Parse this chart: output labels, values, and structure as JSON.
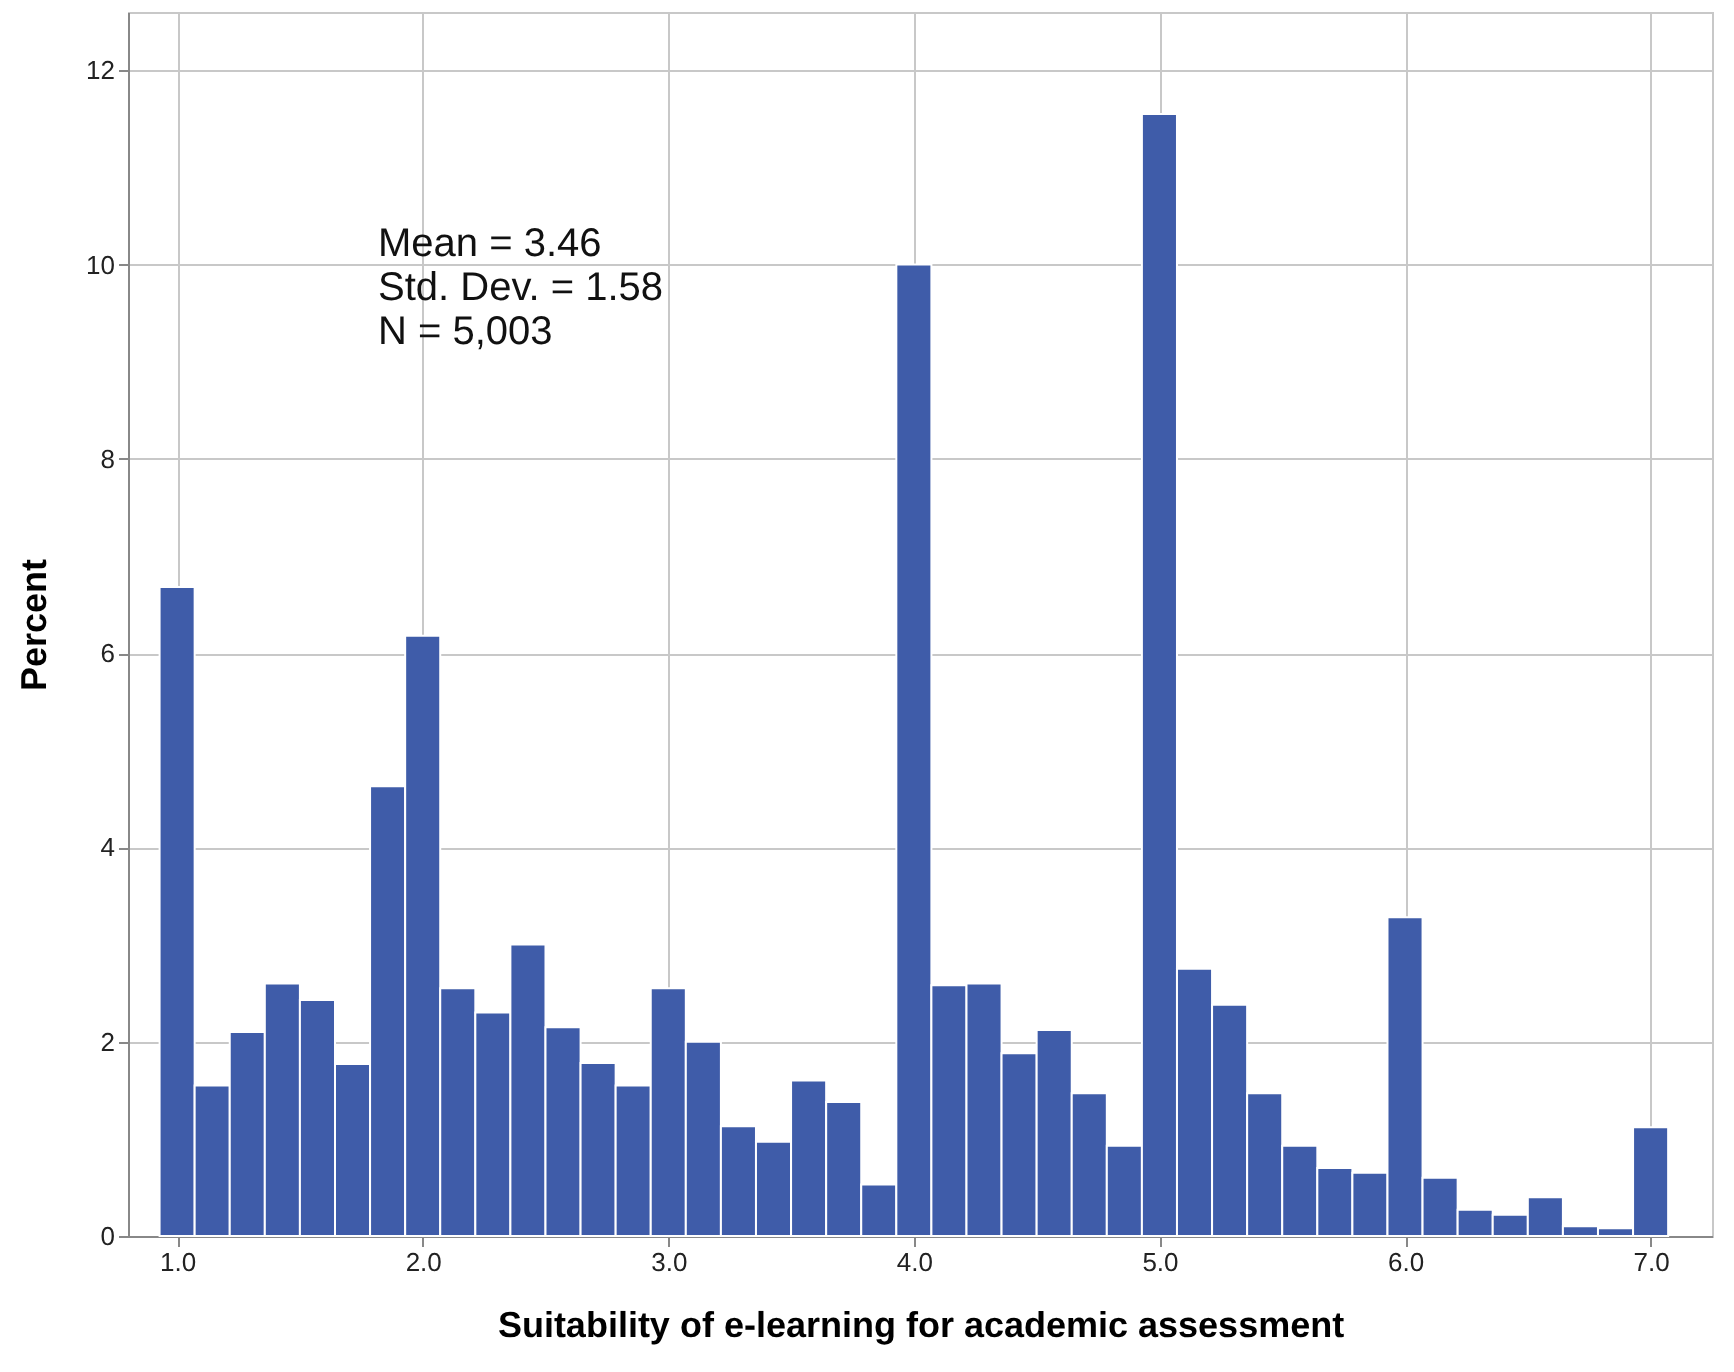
{
  "chart_data": {
    "type": "histogram",
    "xlabel": "Suitability of e-learning for academic assessment",
    "ylabel": "Percent",
    "bins": [
      0.9286,
      1.0714,
      1.2143,
      1.3571,
      1.5,
      1.6429,
      1.7857,
      1.9286,
      2.0714,
      2.2143,
      2.3571,
      2.5,
      2.6429,
      2.7857,
      2.9286,
      3.0714,
      3.2143,
      3.3571,
      3.5,
      3.6429,
      3.7857,
      3.9286,
      4.0714,
      4.2143,
      4.3571,
      4.5,
      4.6429,
      4.7857,
      4.9286,
      5.0714,
      5.2143,
      5.3571,
      5.5,
      5.6429,
      5.7857,
      5.9286,
      6.0714,
      6.2143,
      6.3571,
      6.5,
      6.6429,
      6.7857,
      6.9286,
      7.0714
    ],
    "values": [
      6.68,
      1.55,
      2.1,
      2.6,
      2.43,
      1.77,
      4.63,
      6.18,
      2.55,
      2.3,
      3.0,
      2.15,
      1.78,
      1.55,
      2.55,
      2.0,
      1.13,
      0.97,
      1.6,
      1.38,
      0.53,
      10.0,
      2.58,
      2.6,
      1.88,
      2.12,
      1.47,
      0.93,
      11.55,
      2.75,
      2.38,
      1.47,
      0.93,
      0.7,
      0.65,
      3.28,
      0.6,
      0.27,
      0.22,
      0.4,
      0.1,
      0.08,
      1.12
    ],
    "color": "#3f5ca9",
    "xlim": [
      0.8,
      7.25
    ],
    "xticks": [
      {
        "value": 1,
        "label": "1.0"
      },
      {
        "value": 2,
        "label": "2.0"
      },
      {
        "value": 3,
        "label": "3.0"
      },
      {
        "value": 4,
        "label": "4.0"
      },
      {
        "value": 5,
        "label": "5.0"
      },
      {
        "value": 6,
        "label": "6.0"
      },
      {
        "value": 7,
        "label": "7.0"
      }
    ],
    "ylim": [
      0,
      12.6
    ],
    "yticks": [
      0,
      2,
      4,
      6,
      8,
      10,
      12
    ],
    "grid": true,
    "annotations": [
      "Mean = 3.46",
      "Std. Dev. = 1.58",
      "N = 5,003"
    ]
  }
}
